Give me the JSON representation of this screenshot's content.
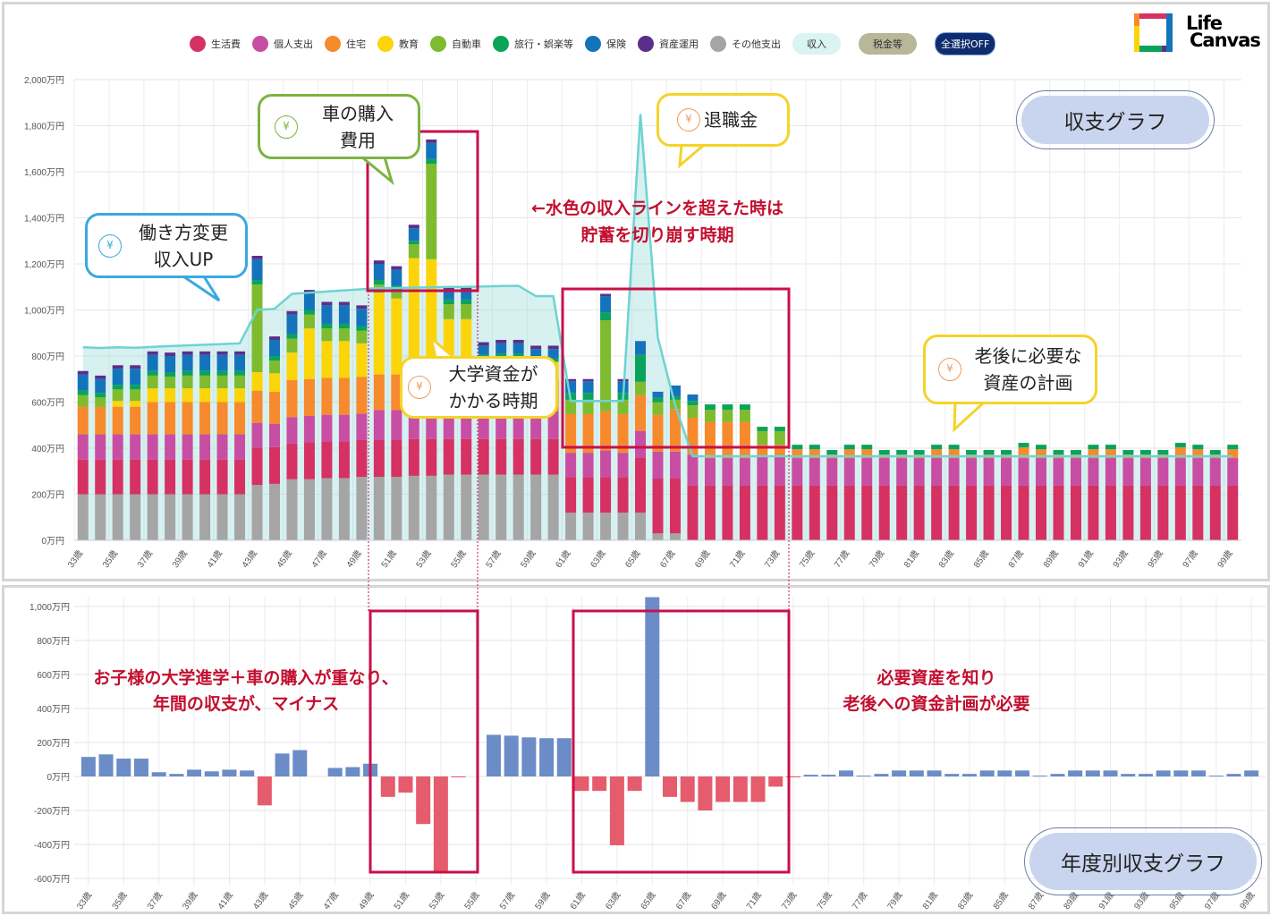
{
  "legend": {
    "items": [
      {
        "label": "生活費",
        "color": "#d63163"
      },
      {
        "label": "個人支出",
        "color": "#c84ea3"
      },
      {
        "label": "住宅",
        "color": "#f68a2c"
      },
      {
        "label": "教育",
        "color": "#fcd40a"
      },
      {
        "label": "自動車",
        "color": "#7fbb2f"
      },
      {
        "label": "旅行・娯楽等",
        "color": "#0aa35a"
      },
      {
        "label": "保険",
        "color": "#1474bb"
      },
      {
        "label": "資産運用",
        "color": "#5a2f8a"
      },
      {
        "label": "その他支出",
        "color": "#a5a5a5"
      }
    ],
    "income_button": "収入",
    "tax_button": "税金等",
    "toggle_all_button": "全選択OFF"
  },
  "logo": {
    "line1": "Life",
    "line2": "Canvas"
  },
  "titles": {
    "top": "収支グラフ",
    "bottom": "年度別収支グラフ"
  },
  "callouts": {
    "work_change": [
      "働き方変更",
      "収入UP"
    ],
    "car": [
      "車の購入",
      "費用"
    ],
    "retirement": [
      "退職金"
    ],
    "college": [
      "大学資金が",
      "かかる時期"
    ],
    "retire_plan": [
      "老後に必要な",
      "資産の計画"
    ],
    "yen": "¥"
  },
  "notes": {
    "top": [
      "←水色の収入ラインを超えた時は",
      "貯蓄を切り崩す時期"
    ],
    "bottom_left": [
      "お子様の大学進学＋車の購入が重なり、",
      "年間の収支が、マイナス"
    ],
    "bottom_right": [
      "必要資産を知り",
      "老後への資金計画が必要"
    ]
  },
  "chart_data": [
    {
      "type": "bar",
      "stacked": true,
      "title": "収支グラフ",
      "unit": "万円",
      "ylim": [
        0,
        2000
      ],
      "y_ticks": [
        "0万円",
        "200万円",
        "400万円",
        "600万円",
        "800万円",
        "1,000万円",
        "1,200万円",
        "1,400万円",
        "1,600万円",
        "1,800万円",
        "2,000万円"
      ],
      "ages": [
        33,
        99
      ],
      "x_tick_labels": [
        "33歳",
        "35歳",
        "37歳",
        "39歳",
        "41歳",
        "43歳",
        "45歳",
        "47歳",
        "49歳",
        "51歳",
        "53歳",
        "55歳",
        "57歳",
        "59歳",
        "61歳",
        "63歳",
        "65歳",
        "67歳",
        "69歳",
        "71歳",
        "73歳",
        "75歳",
        "77歳",
        "79歳",
        "81歳",
        "83歳",
        "85歳",
        "87歳",
        "89歳",
        "91歳",
        "93歳",
        "95歳",
        "97歳",
        "99歳"
      ],
      "stack_order": [
        {
          "name": "その他支出",
          "color": "#a5a5a5"
        },
        {
          "name": "生活費",
          "color": "#d63163"
        },
        {
          "name": "個人支出",
          "color": "#c84ea3"
        },
        {
          "name": "住宅",
          "color": "#f68a2c"
        },
        {
          "name": "教育",
          "color": "#fcd40a"
        },
        {
          "name": "自動車",
          "color": "#7fbb2f"
        },
        {
          "name": "旅行・娯楽等",
          "color": "#0aa35a"
        },
        {
          "name": "保険",
          "color": "#1474bb"
        },
        {
          "name": "資産運用",
          "color": "#5a2f8a"
        }
      ],
      "values_by_age": [
        [
          200,
          150,
          110,
          120,
          0,
          50,
          20,
          70,
          15
        ],
        [
          200,
          150,
          110,
          120,
          0,
          40,
          20,
          60,
          15
        ],
        [
          200,
          150,
          110,
          120,
          25,
          50,
          20,
          70,
          15
        ],
        [
          200,
          150,
          110,
          120,
          25,
          50,
          20,
          70,
          15
        ],
        [
          200,
          150,
          110,
          140,
          60,
          55,
          20,
          70,
          15
        ],
        [
          200,
          150,
          110,
          140,
          60,
          50,
          20,
          70,
          15
        ],
        [
          200,
          150,
          110,
          140,
          60,
          55,
          20,
          70,
          15
        ],
        [
          200,
          150,
          110,
          140,
          60,
          55,
          20,
          70,
          15
        ],
        [
          200,
          150,
          110,
          140,
          60,
          55,
          20,
          70,
          15
        ],
        [
          200,
          150,
          110,
          140,
          60,
          55,
          20,
          70,
          15
        ],
        [
          240,
          160,
          110,
          140,
          80,
          380,
          20,
          90,
          15
        ],
        [
          245,
          160,
          100,
          140,
          80,
          55,
          20,
          70,
          15
        ],
        [
          265,
          155,
          115,
          160,
          120,
          60,
          20,
          85,
          15
        ],
        [
          265,
          160,
          115,
          160,
          220,
          60,
          20,
          72,
          15
        ],
        [
          270,
          160,
          115,
          160,
          160,
          55,
          20,
          80,
          15
        ],
        [
          270,
          160,
          115,
          160,
          160,
          55,
          20,
          80,
          15
        ],
        [
          275,
          160,
          115,
          160,
          145,
          55,
          20,
          75,
          15
        ],
        [
          275,
          160,
          130,
          155,
          355,
          35,
          20,
          70,
          15
        ],
        [
          275,
          160,
          130,
          155,
          330,
          35,
          20,
          70,
          15
        ],
        [
          280,
          160,
          130,
          155,
          500,
          60,
          15,
          55,
          15
        ],
        [
          280,
          160,
          130,
          150,
          500,
          415,
          20,
          70,
          15
        ],
        [
          285,
          155,
          130,
          155,
          235,
          65,
          20,
          40,
          15
        ],
        [
          285,
          155,
          130,
          155,
          235,
          65,
          20,
          40,
          15
        ],
        [
          285,
          155,
          120,
          140,
          90,
          0,
          15,
          40,
          15
        ],
        [
          285,
          155,
          120,
          140,
          95,
          0,
          15,
          45,
          15
        ],
        [
          285,
          155,
          120,
          140,
          95,
          0,
          15,
          45,
          15
        ],
        [
          285,
          155,
          120,
          140,
          75,
          0,
          15,
          40,
          15
        ],
        [
          285,
          155,
          120,
          140,
          75,
          0,
          15,
          40,
          15
        ],
        [
          120,
          155,
          105,
          168,
          0,
          62,
          30,
          50,
          10
        ],
        [
          120,
          155,
          105,
          168,
          0,
          62,
          30,
          50,
          10
        ],
        [
          120,
          155,
          115,
          170,
          0,
          395,
          35,
          70,
          10
        ],
        [
          120,
          155,
          105,
          168,
          0,
          62,
          30,
          50,
          10
        ],
        [
          120,
          240,
          115,
          155,
          0,
          58,
          117,
          60,
          0
        ],
        [
          30,
          238,
          117,
          160,
          0,
          55,
          18,
          27,
          0
        ],
        [
          30,
          238,
          117,
          185,
          0,
          40,
          15,
          47,
          0
        ],
        [
          0,
          237,
          135,
          160,
          0,
          54,
          19,
          28,
          0
        ],
        [
          0,
          237,
          120,
          156,
          0,
          54,
          23,
          0,
          0
        ],
        [
          0,
          237,
          120,
          156,
          0,
          54,
          23,
          0,
          0
        ],
        [
          0,
          237,
          120,
          156,
          0,
          54,
          23,
          0,
          0
        ],
        [
          0,
          237,
          132,
          46,
          0,
          59,
          19,
          0,
          0
        ],
        [
          0,
          237,
          132,
          46,
          0,
          59,
          19,
          0,
          0
        ],
        [
          0,
          237,
          120,
          38,
          0,
          0,
          20,
          0,
          0
        ],
        [
          0,
          237,
          120,
          38,
          0,
          0,
          20,
          0,
          0
        ],
        [
          0,
          237,
          120,
          15,
          0,
          0,
          20,
          0,
          0
        ],
        [
          0,
          237,
          120,
          38,
          0,
          0,
          20,
          0,
          0
        ],
        [
          0,
          237,
          120,
          38,
          0,
          0,
          20,
          0,
          0
        ],
        [
          0,
          237,
          120,
          15,
          0,
          0,
          20,
          0,
          0
        ],
        [
          0,
          237,
          120,
          15,
          0,
          0,
          20,
          0,
          0
        ],
        [
          0,
          237,
          120,
          15,
          0,
          0,
          20,
          0,
          0
        ],
        [
          0,
          237,
          120,
          38,
          0,
          0,
          20,
          0,
          0
        ],
        [
          0,
          237,
          120,
          38,
          0,
          0,
          20,
          0,
          0
        ],
        [
          0,
          237,
          120,
          15,
          0,
          0,
          20,
          0,
          0
        ],
        [
          0,
          237,
          120,
          15,
          0,
          0,
          20,
          0,
          0
        ],
        [
          0,
          237,
          120,
          15,
          0,
          0,
          20,
          0,
          0
        ],
        [
          0,
          237,
          120,
          46,
          0,
          0,
          20,
          0,
          0
        ],
        [
          0,
          237,
          120,
          38,
          0,
          0,
          20,
          0,
          0
        ],
        [
          0,
          237,
          120,
          15,
          0,
          0,
          20,
          0,
          0
        ],
        [
          0,
          237,
          120,
          15,
          0,
          0,
          20,
          0,
          0
        ],
        [
          0,
          237,
          120,
          38,
          0,
          0,
          20,
          0,
          0
        ],
        [
          0,
          237,
          120,
          38,
          0,
          0,
          20,
          0,
          0
        ],
        [
          0,
          237,
          120,
          15,
          0,
          0,
          20,
          0,
          0
        ],
        [
          0,
          237,
          120,
          15,
          0,
          0,
          20,
          0,
          0
        ],
        [
          0,
          237,
          120,
          15,
          0,
          0,
          20,
          0,
          0
        ],
        [
          0,
          237,
          120,
          46,
          0,
          0,
          20,
          0,
          0
        ],
        [
          0,
          237,
          120,
          38,
          0,
          0,
          20,
          0,
          0
        ],
        [
          0,
          237,
          120,
          15,
          0,
          0,
          20,
          0,
          0
        ],
        [
          0,
          237,
          120,
          38,
          0,
          0,
          20,
          0,
          0
        ]
      ],
      "income": {
        "name": "収入",
        "color": "#6dd3d3",
        "values": [
          838,
          835,
          838,
          836,
          840,
          843,
          846,
          849,
          852,
          855,
          1000,
          1005,
          1070,
          1075,
          1080,
          1085,
          1090,
          1095,
          1095,
          1097,
          1098,
          1100,
          1100,
          1102,
          1104,
          1105,
          1060,
          1060,
          605,
          605,
          605,
          605,
          1850,
          880,
          585,
          365,
          365,
          365,
          365,
          365,
          365,
          365,
          365,
          365,
          365,
          365,
          365,
          365,
          365,
          365,
          365,
          365,
          365,
          365,
          365,
          365,
          365,
          365,
          365,
          365,
          365,
          365,
          365,
          365,
          365,
          365,
          365
        ]
      }
    },
    {
      "type": "bar",
      "title": "年度別収支グラフ",
      "unit": "万円",
      "ylim": [
        -600,
        1000
      ],
      "y_ticks": [
        "-600万円",
        "-400万円",
        "-200万円",
        "0万円",
        "200万円",
        "400万円",
        "600万円",
        "800万円",
        "1,000万円"
      ],
      "ages": [
        33,
        99
      ],
      "x_tick_labels": [
        "33歳",
        "35歳",
        "37歳",
        "39歳",
        "41歳",
        "43歳",
        "45歳",
        "47歳",
        "49歳",
        "51歳",
        "53歳",
        "55歳",
        "57歳",
        "59歳",
        "61歳",
        "63歳",
        "65歳",
        "67歳",
        "69歳",
        "71歳",
        "73歳",
        "75歳",
        "77歳",
        "79歳",
        "81歳",
        "83歳",
        "85歳",
        "87歳",
        "89歳",
        "91歳",
        "93歳",
        "95歳",
        "97歳",
        "99歳"
      ],
      "positive_color": "#6b8cc7",
      "negative_color": "#e55c6c",
      "values": [
        115,
        130,
        105,
        105,
        25,
        15,
        40,
        30,
        40,
        35,
        -170,
        135,
        155,
        0,
        50,
        55,
        75,
        -120,
        -95,
        -280,
        -570,
        -5,
        0,
        245,
        240,
        230,
        225,
        225,
        -85,
        -85,
        -405,
        -85,
        1055,
        -120,
        -150,
        -200,
        -150,
        -150,
        -150,
        -60,
        -5,
        10,
        10,
        35,
        5,
        15,
        35,
        35,
        35,
        15,
        15,
        35,
        35,
        35,
        5,
        15,
        35,
        35,
        35,
        15,
        15,
        35,
        35,
        35,
        5,
        15,
        35
      ]
    }
  ]
}
